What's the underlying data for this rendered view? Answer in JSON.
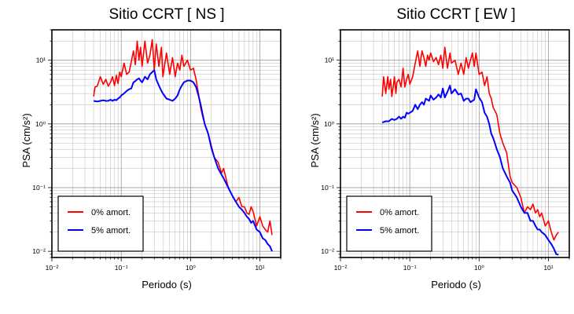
{
  "chart_data": [
    {
      "type": "line",
      "title": "Sitio CCRT [ NS ]",
      "xlabel": "Periodo (s)",
      "ylabel": "PSA (cm/s²)",
      "xscale": "log",
      "yscale": "log",
      "xlim": [
        0.01,
        20
      ],
      "ylim": [
        0.008,
        30
      ],
      "x_tick_labels": [
        "10⁻²",
        "10⁻¹",
        "10⁰",
        "10¹"
      ],
      "y_tick_labels": [
        "10⁻²",
        "10⁻¹",
        "10⁰",
        "10¹"
      ],
      "grid": true,
      "legend_position": "bottom-left",
      "series": [
        {
          "name": "0% amort.",
          "color": "#ff0000",
          "x": [
            0.04,
            0.042,
            0.045,
            0.05,
            0.055,
            0.06,
            0.065,
            0.07,
            0.075,
            0.08,
            0.085,
            0.09,
            0.095,
            0.1,
            0.11,
            0.12,
            0.13,
            0.14,
            0.15,
            0.16,
            0.17,
            0.18,
            0.19,
            0.2,
            0.22,
            0.24,
            0.26,
            0.28,
            0.3,
            0.32,
            0.35,
            0.38,
            0.4,
            0.45,
            0.5,
            0.55,
            0.6,
            0.65,
            0.7,
            0.75,
            0.8,
            0.9,
            1.0,
            1.1,
            1.2,
            1.3,
            1.4,
            1.5,
            1.6,
            1.8,
            2.0,
            2.2,
            2.5,
            2.8,
            3.0,
            3.5,
            4.0,
            4.5,
            5.0,
            5.5,
            6.0,
            6.5,
            7.0,
            7.5,
            8.0,
            9.0,
            10.0,
            11.0,
            12.0,
            13.0,
            14.0,
            15.0
          ],
          "y": [
            2.7,
            3.8,
            3.9,
            5.5,
            4.2,
            5.0,
            3.9,
            4.5,
            5.5,
            4.0,
            5.8,
            4.3,
            6.5,
            5.5,
            9.0,
            6.0,
            6.5,
            9.5,
            14.0,
            8.5,
            20.0,
            10.0,
            16.0,
            8.0,
            20.0,
            9.0,
            12.0,
            21.0,
            7.0,
            18.0,
            8.0,
            16.0,
            5.5,
            13.0,
            6.0,
            11.0,
            5.5,
            9.0,
            7.0,
            12.0,
            8.0,
            10.0,
            7.0,
            7.5,
            5.0,
            3.0,
            1.8,
            1.3,
            1.0,
            0.7,
            0.45,
            0.3,
            0.25,
            0.17,
            0.2,
            0.1,
            0.075,
            0.06,
            0.07,
            0.05,
            0.05,
            0.04,
            0.038,
            0.05,
            0.042,
            0.025,
            0.035,
            0.025,
            0.022,
            0.02,
            0.03,
            0.018
          ]
        },
        {
          "name": "5% amort.",
          "color": "#0000ff",
          "x": [
            0.04,
            0.045,
            0.05,
            0.055,
            0.06,
            0.065,
            0.07,
            0.075,
            0.08,
            0.085,
            0.09,
            0.095,
            0.1,
            0.11,
            0.12,
            0.13,
            0.14,
            0.15,
            0.16,
            0.17,
            0.18,
            0.19,
            0.2,
            0.22,
            0.24,
            0.26,
            0.28,
            0.3,
            0.32,
            0.35,
            0.38,
            0.4,
            0.45,
            0.5,
            0.55,
            0.6,
            0.65,
            0.7,
            0.75,
            0.8,
            0.9,
            1.0,
            1.1,
            1.2,
            1.3,
            1.4,
            1.5,
            1.6,
            1.8,
            2.0,
            2.2,
            2.5,
            2.8,
            3.0,
            3.5,
            4.0,
            4.5,
            5.0,
            5.5,
            6.0,
            6.5,
            7.0,
            7.5,
            8.0,
            9.0,
            10.0,
            11.0,
            12.0,
            13.0,
            14.0,
            15.0
          ],
          "y": [
            2.3,
            2.25,
            2.3,
            2.35,
            2.3,
            2.3,
            2.4,
            2.3,
            2.4,
            2.35,
            2.5,
            2.6,
            2.8,
            3.0,
            3.3,
            3.5,
            3.6,
            4.5,
            4.7,
            5.0,
            5.2,
            4.8,
            4.5,
            5.5,
            5.0,
            6.0,
            6.5,
            7.0,
            5.0,
            4.0,
            3.3,
            3.0,
            2.5,
            2.4,
            2.3,
            2.5,
            2.8,
            3.5,
            4.0,
            4.5,
            4.8,
            4.8,
            4.5,
            3.8,
            2.8,
            2.0,
            1.4,
            1.0,
            0.7,
            0.42,
            0.3,
            0.2,
            0.16,
            0.14,
            0.1,
            0.075,
            0.06,
            0.05,
            0.045,
            0.04,
            0.035,
            0.032,
            0.028,
            0.03,
            0.022,
            0.02,
            0.016,
            0.015,
            0.013,
            0.012,
            0.01
          ]
        }
      ]
    },
    {
      "type": "line",
      "title": "Sitio CCRT [ EW ]",
      "xlabel": "Periodo (s)",
      "ylabel": "PSA (cm/s²)",
      "xscale": "log",
      "yscale": "log",
      "xlim": [
        0.01,
        20
      ],
      "ylim": [
        0.008,
        30
      ],
      "x_tick_labels": [
        "10⁻²",
        "10⁻¹",
        "10⁰",
        "10¹"
      ],
      "y_tick_labels": [
        "10⁻²",
        "10⁻¹",
        "10⁰",
        "10¹"
      ],
      "grid": true,
      "legend_position": "bottom-left",
      "series": [
        {
          "name": "0% amort.",
          "color": "#ff0000",
          "x": [
            0.04,
            0.042,
            0.045,
            0.048,
            0.05,
            0.053,
            0.055,
            0.058,
            0.06,
            0.063,
            0.065,
            0.07,
            0.075,
            0.08,
            0.085,
            0.09,
            0.095,
            0.1,
            0.11,
            0.12,
            0.13,
            0.14,
            0.15,
            0.16,
            0.17,
            0.18,
            0.19,
            0.2,
            0.22,
            0.24,
            0.26,
            0.28,
            0.3,
            0.32,
            0.35,
            0.38,
            0.4,
            0.45,
            0.5,
            0.55,
            0.6,
            0.65,
            0.7,
            0.75,
            0.8,
            0.85,
            0.9,
            1.0,
            1.1,
            1.2,
            1.3,
            1.4,
            1.5,
            1.6,
            1.8,
            2.0,
            2.2,
            2.5,
            2.8,
            3.0,
            3.5,
            4.0,
            4.5,
            5.0,
            5.5,
            6.0,
            6.5,
            7.0,
            7.5,
            8.0,
            9.0,
            10.0,
            11.0,
            12.0,
            13.0,
            14.0
          ],
          "y": [
            2.7,
            5.5,
            3.0,
            5.5,
            3.5,
            5.0,
            2.7,
            4.0,
            5.5,
            3.0,
            4.5,
            5.0,
            3.8,
            7.5,
            3.8,
            5.0,
            6.0,
            4.2,
            5.5,
            9.0,
            14.0,
            8.0,
            14.0,
            11.0,
            8.0,
            12.0,
            10.0,
            13.0,
            9.5,
            11.0,
            8.5,
            12.0,
            7.5,
            16.0,
            7.5,
            13.0,
            9.0,
            10.0,
            6.0,
            9.0,
            6.0,
            11.0,
            7.5,
            10.0,
            13.0,
            8.0,
            13.0,
            6.0,
            6.5,
            4.0,
            5.5,
            3.0,
            2.5,
            1.8,
            1.4,
            0.7,
            0.5,
            0.35,
            0.15,
            0.12,
            0.1,
            0.07,
            0.04,
            0.05,
            0.045,
            0.055,
            0.04,
            0.045,
            0.035,
            0.04,
            0.025,
            0.03,
            0.02,
            0.015,
            0.018,
            0.02
          ]
        },
        {
          "name": "5% amort.",
          "color": "#0000ff",
          "x": [
            0.04,
            0.045,
            0.05,
            0.055,
            0.06,
            0.065,
            0.07,
            0.075,
            0.08,
            0.085,
            0.09,
            0.095,
            0.1,
            0.11,
            0.12,
            0.13,
            0.14,
            0.15,
            0.16,
            0.17,
            0.18,
            0.19,
            0.2,
            0.22,
            0.24,
            0.26,
            0.28,
            0.3,
            0.32,
            0.35,
            0.38,
            0.4,
            0.45,
            0.5,
            0.55,
            0.6,
            0.65,
            0.7,
            0.75,
            0.8,
            0.85,
            0.9,
            1.0,
            1.1,
            1.2,
            1.3,
            1.4,
            1.5,
            1.6,
            1.8,
            2.0,
            2.2,
            2.5,
            2.8,
            3.0,
            3.5,
            4.0,
            4.5,
            5.0,
            5.5,
            6.0,
            6.5,
            7.0,
            7.5,
            8.0,
            9.0,
            10.0,
            11.0,
            12.0,
            13.0,
            14.0
          ],
          "y": [
            1.05,
            1.1,
            1.1,
            1.2,
            1.15,
            1.2,
            1.3,
            1.2,
            1.3,
            1.25,
            1.5,
            1.45,
            1.5,
            1.6,
            2.0,
            1.7,
            2.0,
            2.2,
            2.0,
            2.5,
            2.4,
            2.3,
            2.8,
            2.4,
            2.6,
            2.9,
            2.6,
            3.6,
            2.6,
            3.2,
            4.0,
            3.0,
            3.5,
            2.9,
            3.0,
            2.3,
            2.5,
            2.5,
            2.2,
            2.3,
            2.4,
            3.5,
            2.6,
            2.2,
            1.5,
            1.3,
            1.0,
            0.7,
            0.6,
            0.4,
            0.3,
            0.2,
            0.15,
            0.12,
            0.09,
            0.07,
            0.05,
            0.04,
            0.04,
            0.03,
            0.03,
            0.025,
            0.022,
            0.022,
            0.02,
            0.018,
            0.015,
            0.013,
            0.011,
            0.009,
            0.0088
          ]
        }
      ]
    }
  ]
}
